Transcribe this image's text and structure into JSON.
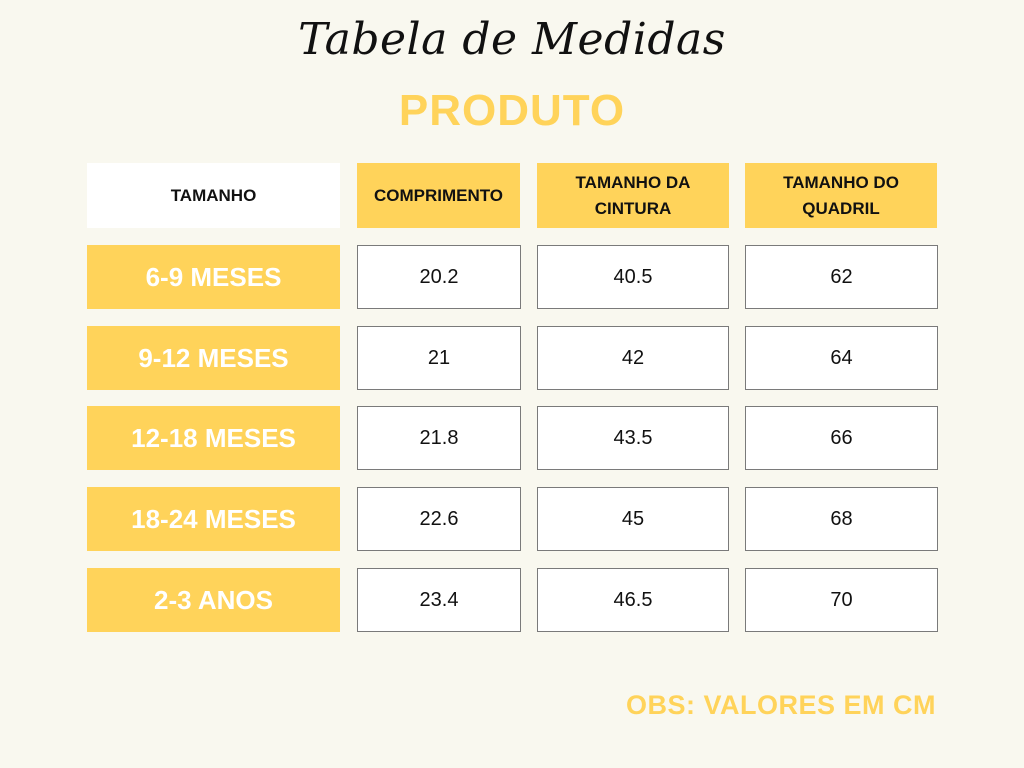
{
  "title": "Tabela de Medidas",
  "subtitle": "PRODUTO",
  "headers": [
    "TAMANHO",
    "COMPRIMENTO",
    "TAMANHO DA CINTURA",
    "TAMANHO DO QUADRIL"
  ],
  "rows": [
    {
      "size": "6-9 MESES",
      "comprimento": "20.2",
      "cintura": "40.5",
      "quadril": "62"
    },
    {
      "size": "9-12 MESES",
      "comprimento": "21",
      "cintura": "42",
      "quadril": "64"
    },
    {
      "size": "12-18 MESES",
      "comprimento": "21.8",
      "cintura": "43.5",
      "quadril": "66"
    },
    {
      "size": "18-24 MESES",
      "comprimento": "22.6",
      "cintura": "45",
      "quadril": "68"
    },
    {
      "size": "2-3 ANOS",
      "comprimento": "23.4",
      "cintura": "46.5",
      "quadril": "70"
    }
  ],
  "note": "OBS: VALORES EM CM",
  "colors": {
    "background": "#f9f8ef",
    "accent": "#ffd35a",
    "cell_border": "#7a7a7a"
  }
}
